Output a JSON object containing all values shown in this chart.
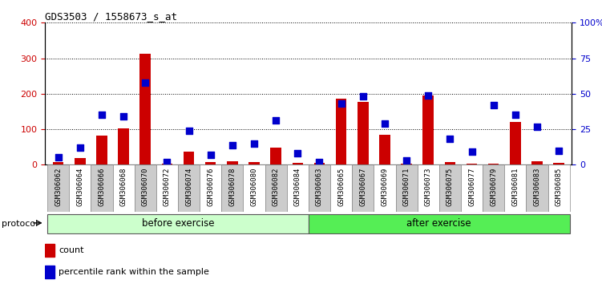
{
  "title": "GDS3503 / 1558673_s_at",
  "samples": [
    "GSM306062",
    "GSM306064",
    "GSM306066",
    "GSM306068",
    "GSM306070",
    "GSM306072",
    "GSM306074",
    "GSM306076",
    "GSM306078",
    "GSM306080",
    "GSM306082",
    "GSM306084",
    "GSM306063",
    "GSM306065",
    "GSM306067",
    "GSM306069",
    "GSM306071",
    "GSM306073",
    "GSM306075",
    "GSM306077",
    "GSM306079",
    "GSM306081",
    "GSM306083",
    "GSM306085"
  ],
  "count": [
    8,
    18,
    82,
    103,
    312,
    3,
    38,
    8,
    10,
    8,
    48,
    5,
    5,
    185,
    177,
    85,
    3,
    195,
    8,
    3,
    3,
    120,
    10,
    5
  ],
  "percentile": [
    5,
    12,
    35,
    34,
    58,
    2,
    24,
    7,
    14,
    15,
    31,
    8,
    2,
    43,
    48,
    29,
    3,
    49,
    18,
    9,
    42,
    35,
    27,
    10
  ],
  "before_exercise_count": 12,
  "after_exercise_count": 12,
  "bar_color": "#cc0000",
  "dot_color": "#0000cc",
  "before_bg": "#ccffcc",
  "after_bg": "#55ee55",
  "tick_bg_odd": "#cccccc",
  "tick_bg_even": "white",
  "ylim_left": [
    0,
    400
  ],
  "ylim_right": [
    0,
    100
  ],
  "yticks_left": [
    0,
    100,
    200,
    300,
    400
  ],
  "yticks_right": [
    0,
    25,
    50,
    75,
    100
  ],
  "ytick_labels_right": [
    "0",
    "25",
    "50",
    "75",
    "100%"
  ],
  "protocol_label": "protocol",
  "before_label": "before exercise",
  "after_label": "after exercise",
  "legend_count": "count",
  "legend_percentile": "percentile rank within the sample"
}
